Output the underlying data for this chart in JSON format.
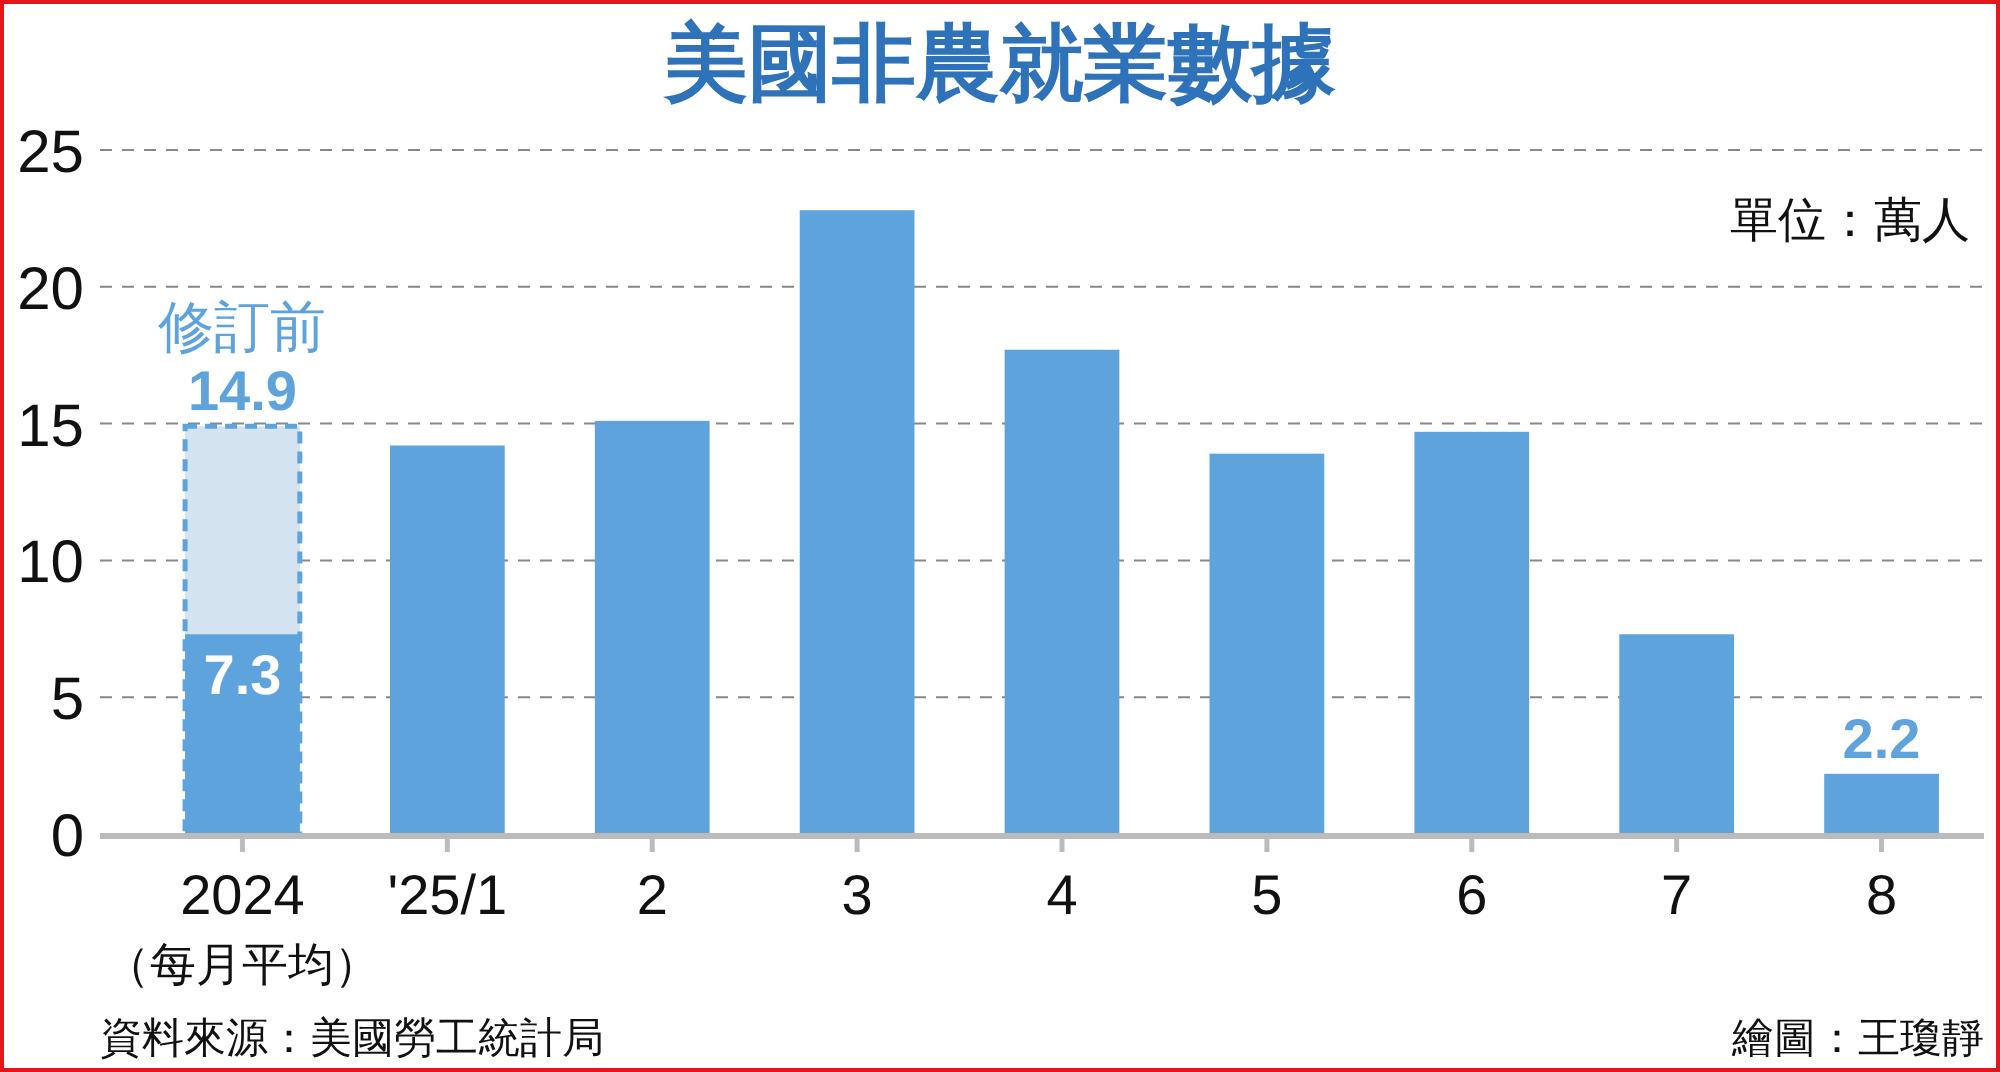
{
  "chart_data": {
    "type": "bar",
    "title": "美國非農就業數據",
    "categories": [
      "2024\n（每月平均）",
      "'25/1",
      "2",
      "3",
      "4",
      "5",
      "6",
      "7",
      "8"
    ],
    "series": [
      {
        "name": "修訂前",
        "color": "#d3e3f0",
        "line_style": "dashed",
        "values": [
          14.9,
          null,
          null,
          null,
          null,
          null,
          null,
          null,
          null
        ],
        "value_labels": [
          "14.9",
          null,
          null,
          null,
          null,
          null,
          null,
          null,
          null
        ]
      },
      {
        "color": "#5fa3dc",
        "values": [
          7.3,
          14.2,
          15.1,
          22.8,
          17.7,
          13.9,
          14.7,
          7.3,
          2.2
        ],
        "value_labels": [
          "7.3",
          null,
          null,
          null,
          null,
          null,
          null,
          null,
          "2.2"
        ]
      }
    ],
    "ylim": [
      0,
      25
    ],
    "yticks": [
      0,
      5,
      10,
      15,
      20,
      25
    ],
    "grid": "y",
    "annotations": [
      "單位：萬人",
      "資料來源：美國勞工統計局",
      "繪圖：王瓊靜"
    ]
  }
}
